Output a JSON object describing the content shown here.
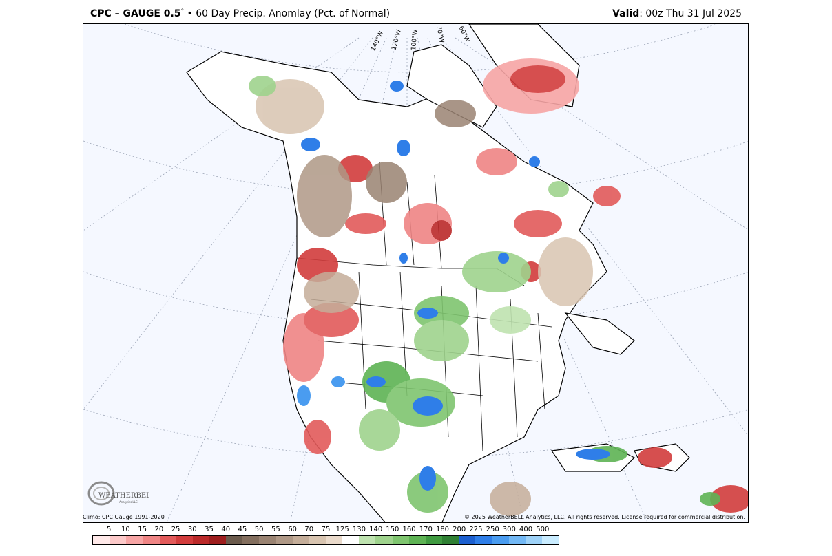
{
  "header": {
    "model": "CPC – GAUGE 0.5",
    "degree_symbol": "°",
    "separator": "•",
    "product": "60 Day Precip. Anomlay (Pct. of Normal)",
    "valid_label": "Valid",
    "valid_time": ": 00z Thu 31 Jul 2025"
  },
  "map": {
    "longitude_labels": [
      "140°W",
      "120°W",
      "100°W",
      "70°W",
      "60°W"
    ],
    "background": "#f5f8ff"
  },
  "footer": {
    "climo": "Climo: CPC Gauge 1991-2020",
    "copyright": "© 2025 WeatherBELL Analytics, LLC. All rights reserved. License required for commercial distribution.",
    "logo_text": "WEATHERBELL",
    "logo_sub": "Analytics LLC"
  },
  "legend": {
    "ticks": [
      "5",
      "10",
      "15",
      "20",
      "25",
      "30",
      "35",
      "40",
      "45",
      "50",
      "55",
      "60",
      "70",
      "75",
      "125",
      "130",
      "140",
      "150",
      "160",
      "170",
      "180",
      "200",
      "225",
      "250",
      "300",
      "400",
      "500"
    ],
    "colors": [
      "#ffe9e9",
      "#fcc9c9",
      "#f7a5a5",
      "#ef8585",
      "#e25a5a",
      "#d23c3c",
      "#bb2a2a",
      "#9e1e1e",
      "#6b5a4c",
      "#836e5e",
      "#9a8372",
      "#af9886",
      "#c4ad99",
      "#d8c4b0",
      "#eadacb",
      "#ffffff",
      "#bfe3b0",
      "#9fd38d",
      "#7fc56f",
      "#5eb354",
      "#3f9a40",
      "#2f7f33",
      "#1c5fcf",
      "#2f7ee8",
      "#4a9cf0",
      "#72b8f5",
      "#9ed2f8",
      "#c9ecff"
    ]
  }
}
